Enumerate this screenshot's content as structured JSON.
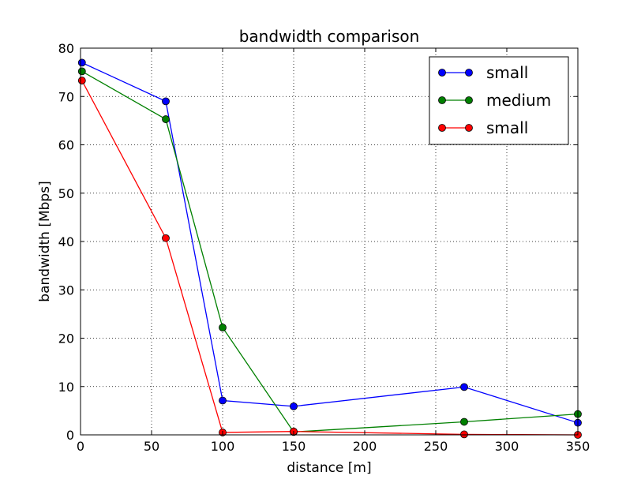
{
  "chart_data": {
    "type": "line",
    "title": "bandwidth comparison",
    "xlabel": "distance [m]",
    "ylabel": "bandwidth [Mbps]",
    "xlim": [
      0,
      350
    ],
    "ylim": [
      0,
      80
    ],
    "xticks": [
      0,
      50,
      100,
      150,
      200,
      250,
      300,
      350
    ],
    "yticks": [
      0,
      10,
      20,
      30,
      40,
      50,
      60,
      70,
      80
    ],
    "grid": true,
    "legend_position": "top-right",
    "series": [
      {
        "name": "small",
        "color": "#0000ff",
        "points": [
          [
            1,
            77.0
          ],
          [
            60,
            69.0
          ],
          [
            100,
            7.1
          ],
          [
            150,
            5.9
          ],
          [
            270,
            9.9
          ],
          [
            350,
            2.5
          ]
        ]
      },
      {
        "name": "medium",
        "color": "#008000",
        "points": [
          [
            1,
            75.2
          ],
          [
            60,
            65.3
          ],
          [
            100,
            22.2
          ],
          [
            150,
            0.6
          ],
          [
            270,
            2.7
          ],
          [
            350,
            4.3
          ]
        ]
      },
      {
        "name": "small",
        "color": "#ff0000",
        "points": [
          [
            1,
            73.3
          ],
          [
            60,
            40.7
          ],
          [
            100,
            0.5
          ],
          [
            150,
            0.7
          ],
          [
            270,
            0.1
          ],
          [
            350,
            0.0
          ]
        ]
      }
    ]
  }
}
